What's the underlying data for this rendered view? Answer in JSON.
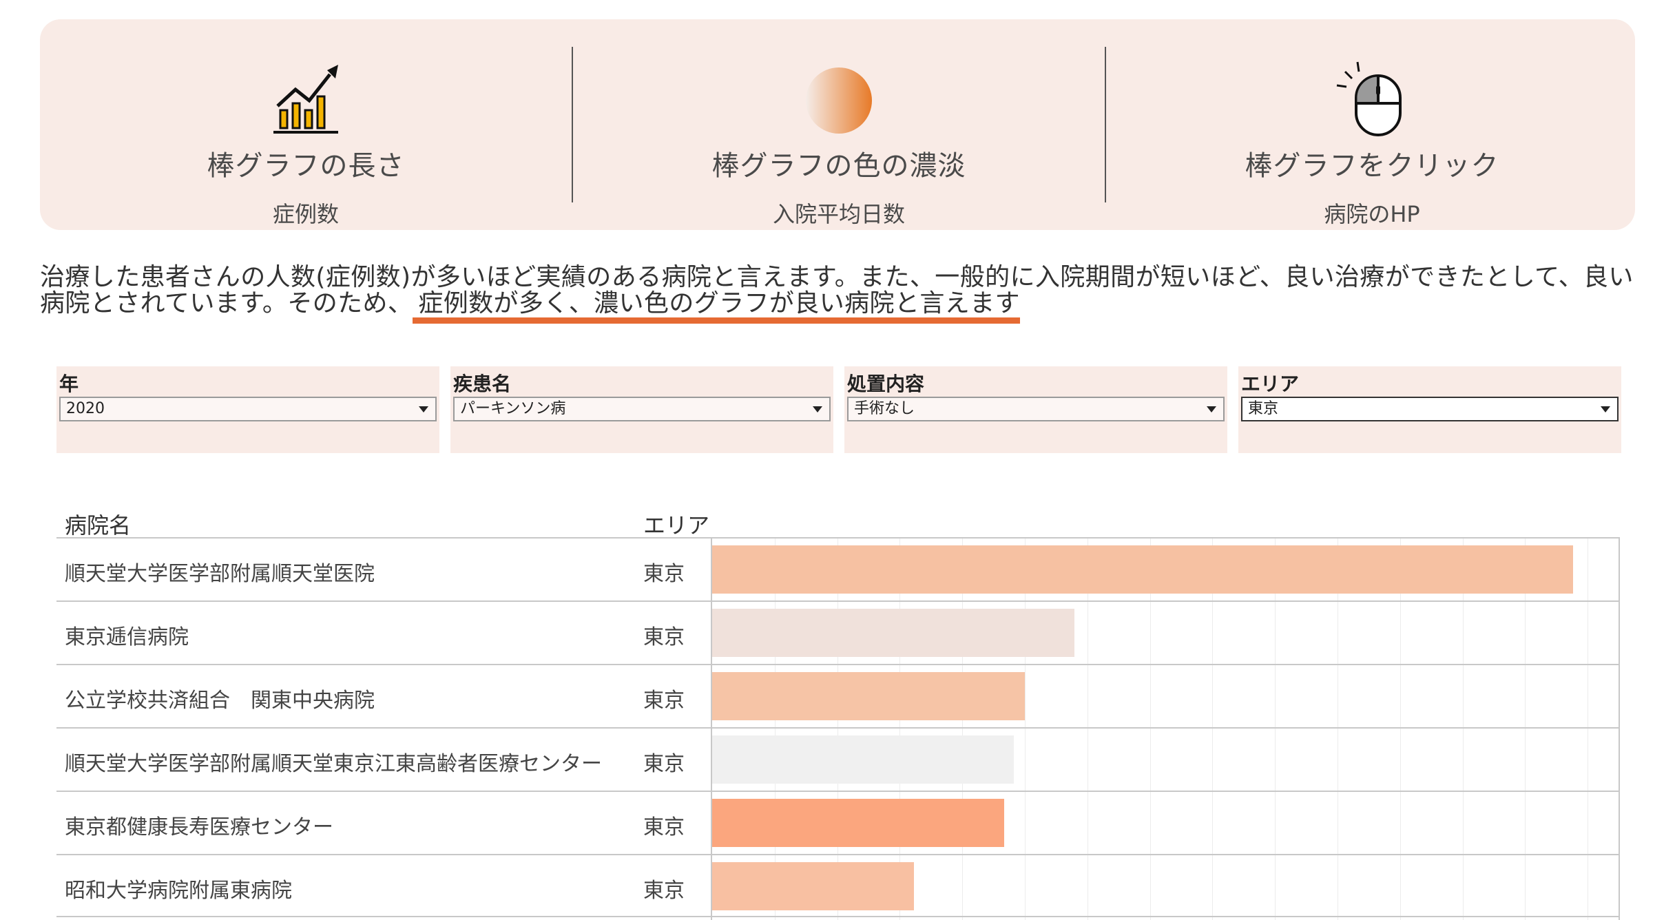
{
  "legend": {
    "items": [
      {
        "icon": "bar-chart-growth-icon",
        "title": "棒グラフの長さ",
        "subtitle": "症例数"
      },
      {
        "icon": "color-gradient-circle-icon",
        "title": "棒グラフの色の濃淡",
        "subtitle": "入院平均日数"
      },
      {
        "icon": "mouse-click-icon",
        "title": "棒グラフをクリック",
        "subtitle": "病院のHP"
      }
    ]
  },
  "description": {
    "text": "治療した患者さんの人数(症例数)が多いほど実績のある病院と言えます。また、一般的に入院期間が短いほど、良い治療ができたとして、良い病院とされています。そのため、",
    "highlight": "症例数が多く、濃い色のグラフが良い病院と言えます"
  },
  "filters": [
    {
      "label": "年",
      "value": "2020"
    },
    {
      "label": "疾患名",
      "value": "パーキンソン病"
    },
    {
      "label": "処置内容",
      "value": "手術なし"
    },
    {
      "label": "エリア",
      "value": "東京"
    }
  ],
  "table": {
    "headers": {
      "hospital": "病院名",
      "area": "エリア"
    },
    "rows": [
      {
        "hospital": "順天堂大学医学部附属順天堂医院",
        "area": "東京",
        "bar_fraction": 0.95,
        "color": "#f6c1a2"
      },
      {
        "hospital": "東京逓信病院",
        "area": "東京",
        "bar_fraction": 0.4,
        "color": "#f0e1db"
      },
      {
        "hospital": "公立学校共済組合　関東中央病院",
        "area": "東京",
        "bar_fraction": 0.345,
        "color": "#f6c4a6"
      },
      {
        "hospital": "順天堂大学医学部附属順天堂東京江東高齢者医療センター",
        "area": "東京",
        "bar_fraction": 0.333,
        "color": "#f0f0f0"
      },
      {
        "hospital": "東京都健康長寿医療センター",
        "area": "東京",
        "bar_fraction": 0.322,
        "color": "#fba67e"
      },
      {
        "hospital": "昭和大学病院附属東病院",
        "area": "東京",
        "bar_fraction": 0.223,
        "color": "#f8c0a2"
      }
    ]
  }
}
